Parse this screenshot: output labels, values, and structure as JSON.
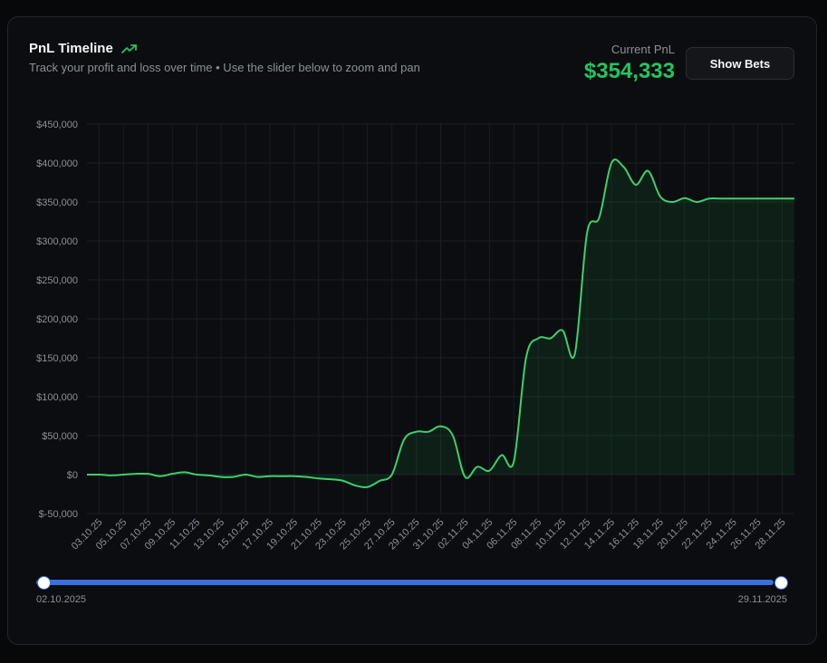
{
  "header": {
    "title": "PnL Timeline",
    "subtitle": "Track your profit and loss over time • Use the slider below to zoom and pan",
    "current_pnl_label": "Current PnL",
    "current_pnl_value": "$354,333",
    "show_bets_label": "Show Bets",
    "trend_icon": "trending-up-icon"
  },
  "colors": {
    "line": "#3ecf6a",
    "accent_green": "#22c55e",
    "slider": "#3b6fe0"
  },
  "slider": {
    "start_label": "02.10.2025",
    "end_label": "29.11.2025",
    "range_start": 0,
    "range_end": 1
  },
  "chart_data": {
    "type": "area",
    "title": "",
    "xlabel": "",
    "ylabel": "",
    "ylim": [
      -50000,
      450000
    ],
    "yticks": [
      -50000,
      0,
      50000,
      100000,
      150000,
      200000,
      250000,
      300000,
      350000,
      400000,
      450000
    ],
    "ytick_labels": [
      "$-50,000",
      "$0",
      "$50,000",
      "$100,000",
      "$150,000",
      "$200,000",
      "$250,000",
      "$300,000",
      "$350,000",
      "$400,000",
      "$450,000"
    ],
    "xtick_labels": [
      "03.10.25",
      "05.10.25",
      "07.10.25",
      "09.10.25",
      "11.10.25",
      "13.10.25",
      "15.10.25",
      "17.10.25",
      "19.10.25",
      "21.10.25",
      "23.10.25",
      "25.10.25",
      "27.10.25",
      "29.10.25",
      "31.10.25",
      "02.11.25",
      "04.11.25",
      "06.11.25",
      "08.11.25",
      "10.11.25",
      "12.11.25",
      "14.11.25",
      "16.11.25",
      "18.11.25",
      "20.11.25",
      "22.11.25",
      "24.11.25",
      "26.11.25",
      "28.11.25"
    ],
    "grid": true,
    "series": [
      {
        "x": [
          "02.10.25",
          "03.10.25",
          "04.10.25",
          "05.10.25",
          "06.10.25",
          "07.10.25",
          "08.10.25",
          "09.10.25",
          "10.10.25",
          "11.10.25",
          "12.10.25",
          "13.10.25",
          "14.10.25",
          "15.10.25",
          "16.10.25",
          "17.10.25",
          "18.10.25",
          "19.10.25",
          "20.10.25",
          "21.10.25",
          "22.10.25",
          "23.10.25",
          "24.10.25",
          "25.10.25",
          "26.10.25",
          "27.10.25",
          "28.10.25",
          "29.10.25",
          "30.10.25",
          "31.10.25",
          "01.11.25",
          "02.11.25",
          "03.11.25",
          "04.11.25",
          "05.11.25",
          "06.11.25",
          "07.11.25",
          "08.11.25",
          "09.11.25",
          "10.11.25",
          "11.11.25",
          "12.11.25",
          "13.11.25",
          "14.11.25",
          "15.11.25",
          "16.11.25",
          "17.11.25",
          "18.11.25",
          "19.11.25",
          "20.11.25",
          "21.11.25",
          "22.11.25",
          "23.11.25",
          "24.11.25",
          "25.11.25",
          "26.11.25",
          "27.11.25",
          "28.11.25",
          "29.11.25"
        ],
        "values": [
          0,
          0,
          -1000,
          0,
          1000,
          1000,
          -2000,
          1000,
          3000,
          0,
          -1000,
          -3000,
          -3000,
          0,
          -3000,
          -2000,
          -2000,
          -2000,
          -3000,
          -5000,
          -6000,
          -8000,
          -14000,
          -16000,
          -8000,
          0,
          45000,
          55000,
          55000,
          62000,
          50000,
          -3000,
          10000,
          5000,
          25000,
          17000,
          150000,
          175000,
          175000,
          185000,
          155000,
          310000,
          330000,
          400000,
          395000,
          372000,
          390000,
          357000,
          350000,
          355000,
          350000,
          354333,
          354333,
          354333,
          354333,
          354333,
          354333,
          354333,
          354333
        ]
      }
    ]
  }
}
